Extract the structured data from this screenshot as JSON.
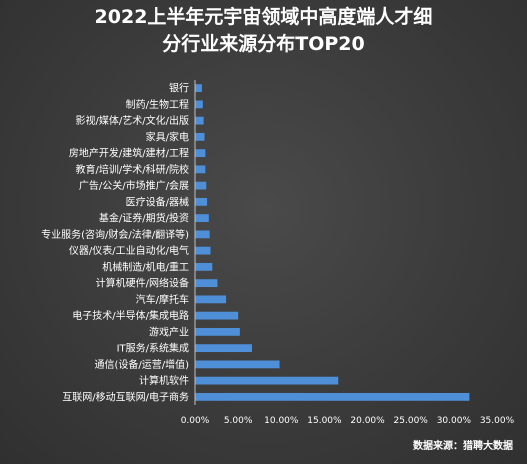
{
  "title_line1": "2022上半年元宇宙领域中高度端人才细",
  "title_line2": "分行业来源分布TOP20",
  "source": "数据来源：猎聘大数据",
  "colors": {
    "background": "#3b3b3b",
    "bar": "#4f8fd8",
    "axis": "#bfbfbf",
    "text": "#ffffff"
  },
  "chart_data": {
    "type": "bar",
    "orientation": "horizontal",
    "title": "2022上半年元宇宙领域中高度端人才细分行业来源分布TOP20",
    "xlabel": "",
    "ylabel": "",
    "xlim": [
      0,
      0.35
    ],
    "x_ticks": [
      "0.00%",
      "5.00%",
      "10.00%",
      "15.00%",
      "20.00%",
      "25.00%",
      "30.00%",
      "35.00%"
    ],
    "grid": false,
    "legend": "none",
    "categories": [
      "互联网/移动互联网/电子商务",
      "计算机软件",
      "通信(设备/运营/增值)",
      "IT服务/系统集成",
      "游戏产业",
      "电子技术/半导体/集成电路",
      "汽车/摩托车",
      "计算机硬件/网络设备",
      "机械制造/机电/重工",
      "仪器/仪表/工业自动化/电气",
      "专业服务(咨询/财会/法律/翻译等)",
      "基金/证券/期货/投资",
      "医疗设备/器械",
      "广告/公关/市场推广/会展",
      "教育/培训/学术/科研/院校",
      "房地产开发/建筑/建材/工程",
      "家具/家电",
      "影视/媒体/艺术/文化/出版",
      "制药/生物工程",
      "银行"
    ],
    "values": [
      0.318,
      0.166,
      0.098,
      0.066,
      0.052,
      0.05,
      0.036,
      0.026,
      0.02,
      0.018,
      0.017,
      0.016,
      0.014,
      0.013,
      0.012,
      0.012,
      0.011,
      0.01,
      0.009,
      0.008
    ]
  }
}
